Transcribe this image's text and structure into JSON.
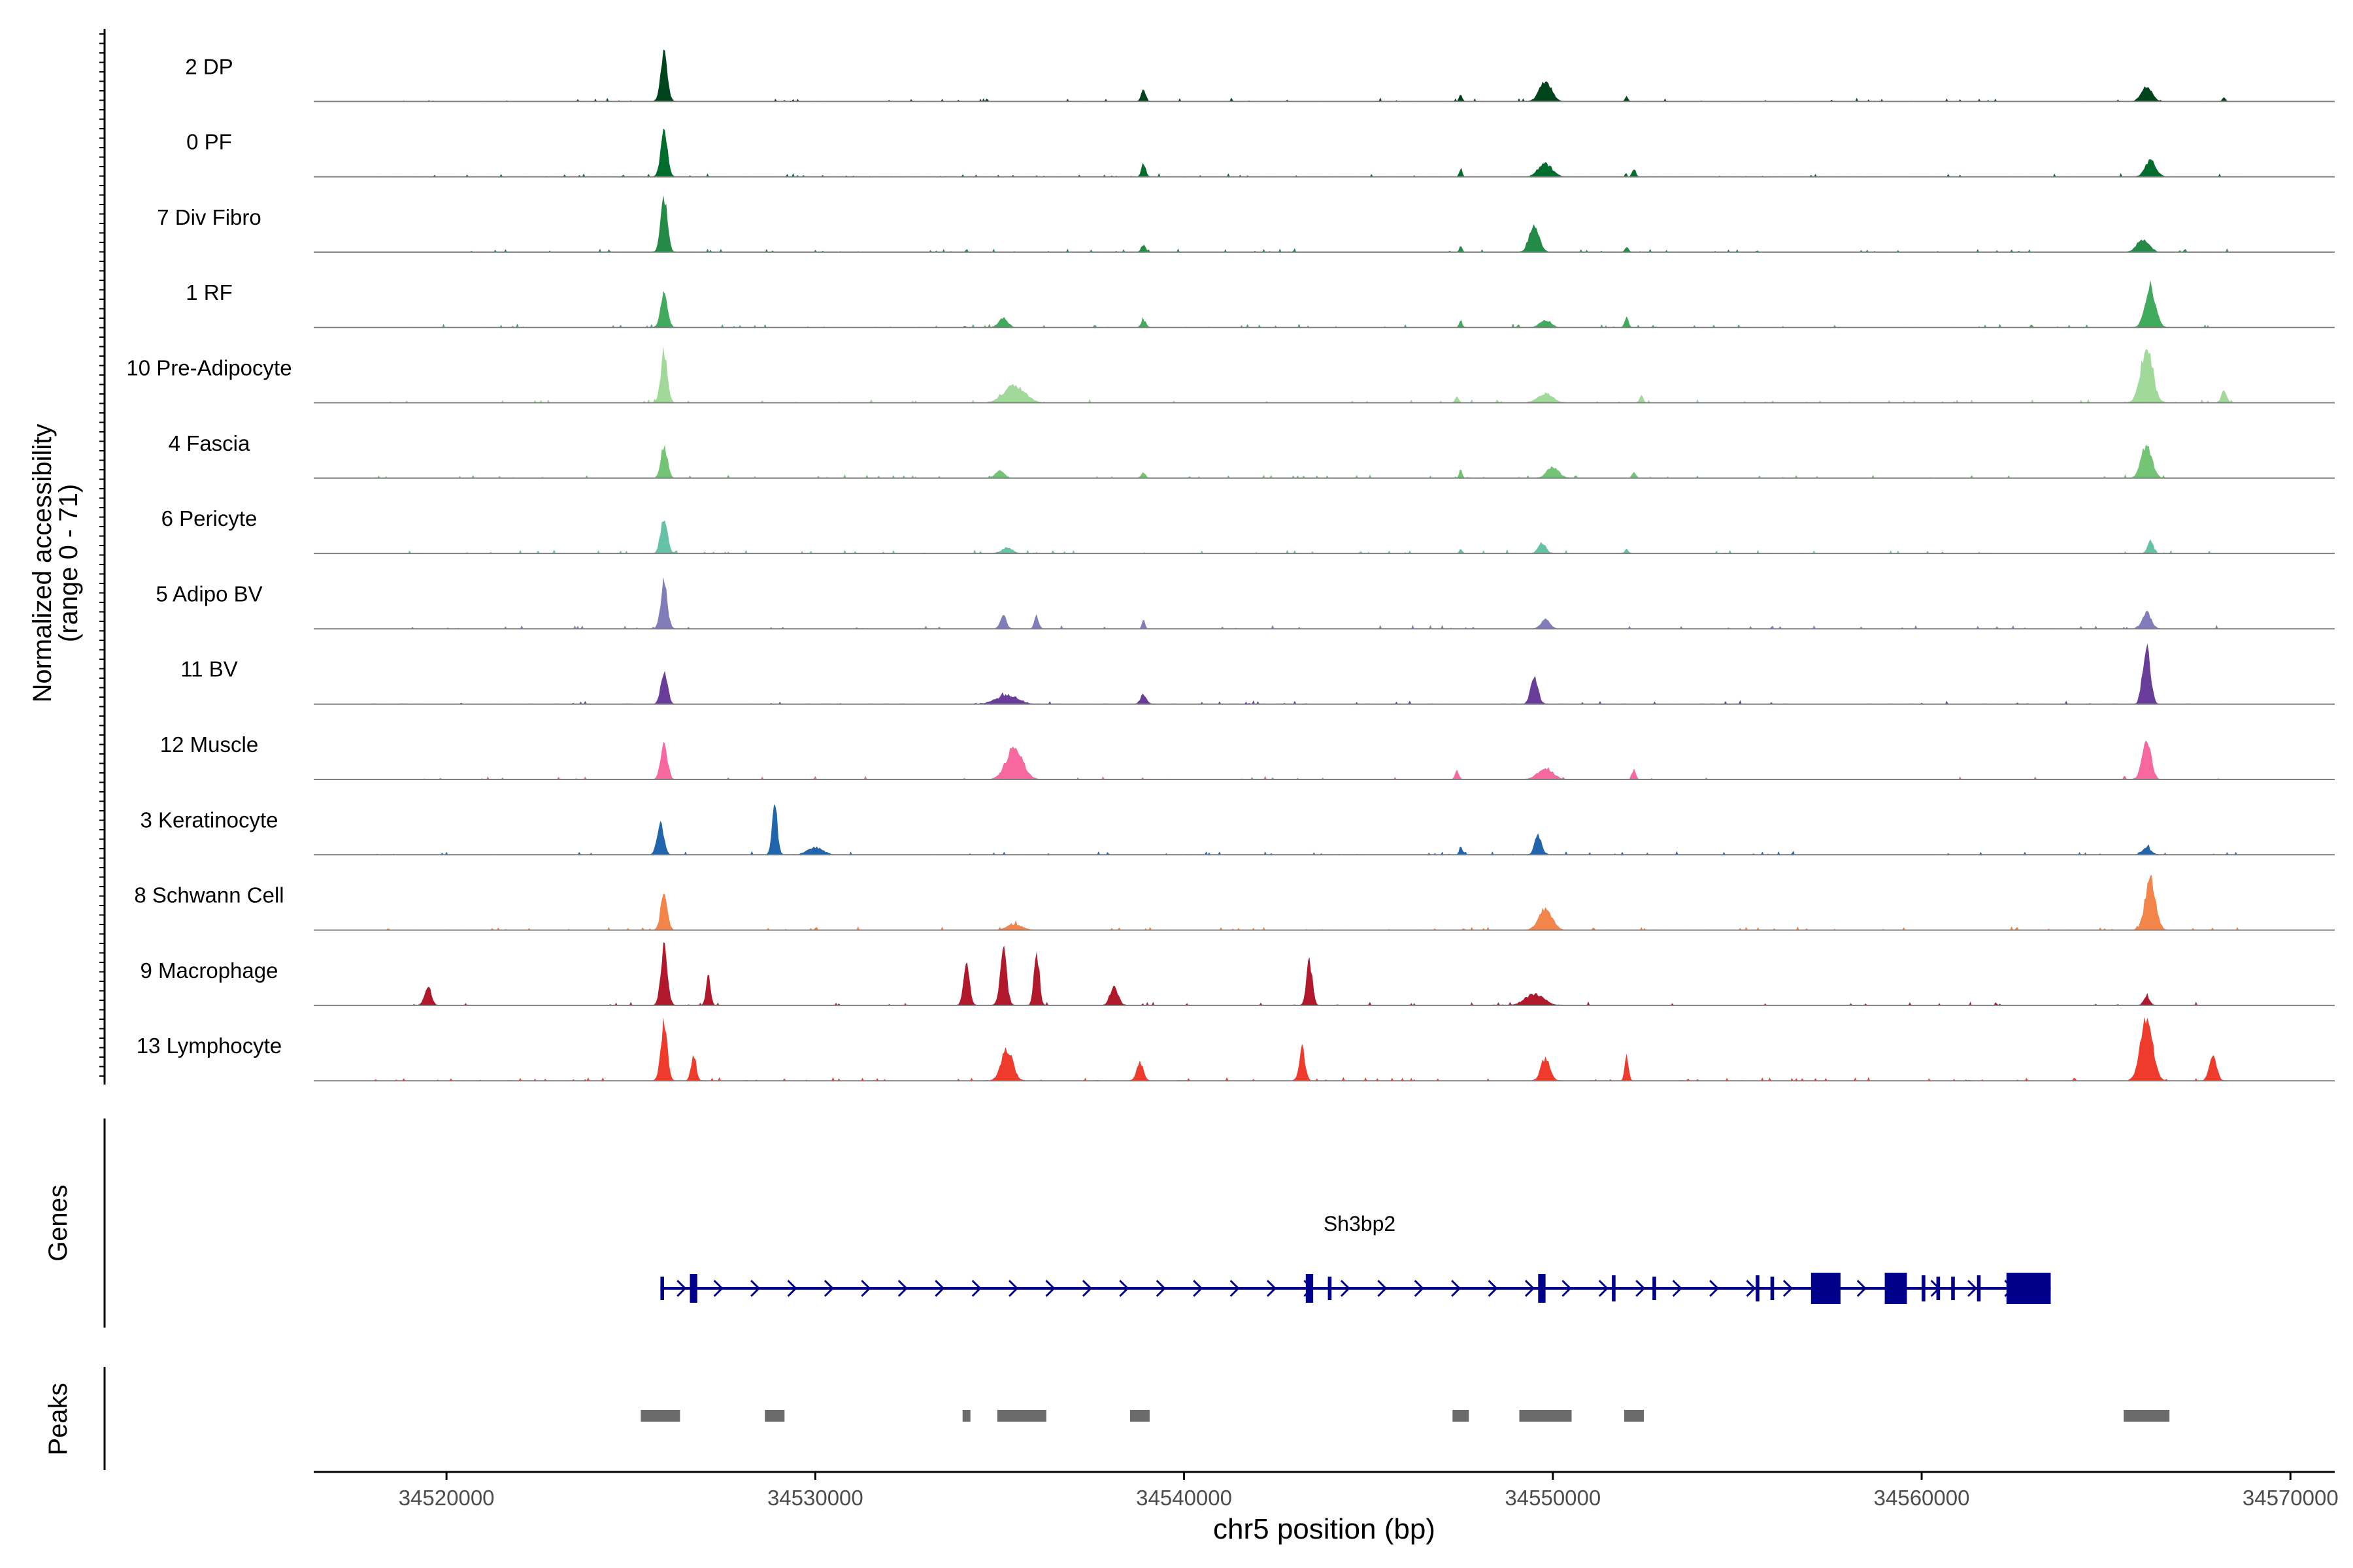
{
  "chart_data": {
    "type": "area",
    "title": "",
    "xlabel": "chr5 position (bp)",
    "ylabel": "Normalized accessibility",
    "ylabel_range": "(range 0 - 71)",
    "ylim": [
      0,
      71
    ],
    "xlim": [
      34516400,
      34571200
    ],
    "x_ticks": [
      34520000,
      34530000,
      34540000,
      34550000,
      34560000,
      34570000
    ],
    "x_tick_labels": [
      "34520000",
      "34530000",
      "34540000",
      "34550000",
      "34560000",
      "34570000"
    ],
    "track_labels": {
      "genes": "Genes",
      "peaks": "Peaks"
    },
    "peaks_x": [
      34525800,
      34528900,
      34534100,
      34535600,
      34538800,
      34547500,
      34549800,
      34552200,
      34566100
    ],
    "series": [
      {
        "name": "2 DP",
        "color": "#00441b",
        "peaks": [
          [
            34525900,
            50,
            90
          ],
          [
            34538900,
            14,
            60
          ],
          [
            34547500,
            8,
            40
          ],
          [
            34549800,
            22,
            160
          ],
          [
            34552000,
            5,
            40
          ],
          [
            34566100,
            16,
            140
          ],
          [
            34568200,
            5,
            40
          ]
        ]
      },
      {
        "name": "0 PF",
        "color": "#006d2c",
        "peaks": [
          [
            34525900,
            52,
            90
          ],
          [
            34538900,
            14,
            60
          ],
          [
            34547500,
            8,
            40
          ],
          [
            34549800,
            14,
            180
          ],
          [
            34552200,
            8,
            50
          ],
          [
            34566200,
            18,
            140
          ]
        ]
      },
      {
        "name": "7 Div Fibro",
        "color": "#238b45",
        "peaks": [
          [
            34525900,
            60,
            90
          ],
          [
            34538900,
            8,
            60
          ],
          [
            34547500,
            6,
            40
          ],
          [
            34549500,
            30,
            130
          ],
          [
            34552000,
            5,
            50
          ],
          [
            34566000,
            14,
            160
          ]
        ]
      },
      {
        "name": "1 RF",
        "color": "#41ab5d",
        "peaks": [
          [
            34525900,
            38,
            90
          ],
          [
            34535100,
            10,
            120
          ],
          [
            34538900,
            8,
            60
          ],
          [
            34547500,
            8,
            40
          ],
          [
            34549800,
            8,
            150
          ],
          [
            34552000,
            10,
            50
          ],
          [
            34566200,
            45,
            140
          ]
        ]
      },
      {
        "name": "10 Pre-Adipocyte",
        "color": "#a1d99b",
        "peaks": [
          [
            34525900,
            55,
            90
          ],
          [
            34535400,
            18,
            280
          ],
          [
            34547400,
            6,
            50
          ],
          [
            34549800,
            10,
            200
          ],
          [
            34552400,
            8,
            50
          ],
          [
            34566100,
            60,
            160
          ],
          [
            34568200,
            14,
            70
          ]
        ]
      },
      {
        "name": "4 Fascia",
        "color": "#74c476",
        "peaks": [
          [
            34525900,
            35,
            90
          ],
          [
            34535000,
            8,
            120
          ],
          [
            34538900,
            6,
            60
          ],
          [
            34547500,
            10,
            40
          ],
          [
            34550000,
            12,
            160
          ],
          [
            34552200,
            6,
            50
          ],
          [
            34566100,
            38,
            140
          ]
        ]
      },
      {
        "name": "6 Pericyte",
        "color": "#66c2a4",
        "peaks": [
          [
            34525900,
            38,
            90
          ],
          [
            34535200,
            6,
            150
          ],
          [
            34547500,
            5,
            40
          ],
          [
            34549700,
            12,
            100
          ],
          [
            34552000,
            5,
            50
          ],
          [
            34566200,
            12,
            80
          ]
        ]
      },
      {
        "name": "5 Adipo BV",
        "color": "#807dba",
        "peaks": [
          [
            34525900,
            48,
            90
          ],
          [
            34535100,
            14,
            80
          ],
          [
            34536000,
            14,
            60
          ],
          [
            34538900,
            10,
            40
          ],
          [
            34549800,
            10,
            120
          ],
          [
            34566100,
            18,
            120
          ]
        ]
      },
      {
        "name": "11 BV",
        "color": "#6a3d9a",
        "peaks": [
          [
            34525900,
            35,
            90
          ],
          [
            34535200,
            10,
            280
          ],
          [
            34538900,
            10,
            80
          ],
          [
            34549500,
            28,
            100
          ],
          [
            34566100,
            65,
            100
          ]
        ]
      },
      {
        "name": "12 Muscle",
        "color": "#f768a1",
        "peaks": [
          [
            34525900,
            38,
            90
          ],
          [
            34535400,
            35,
            220
          ],
          [
            34547400,
            10,
            50
          ],
          [
            34549800,
            12,
            200
          ],
          [
            34552200,
            10,
            50
          ],
          [
            34566100,
            42,
            120
          ]
        ]
      },
      {
        "name": "3 Keratinocyte",
        "color": "#2166ac",
        "peaks": [
          [
            34525800,
            36,
            90
          ],
          [
            34528900,
            58,
            70
          ],
          [
            34530000,
            8,
            200
          ],
          [
            34547500,
            10,
            40
          ],
          [
            34549600,
            22,
            90
          ],
          [
            34566100,
            8,
            120
          ]
        ]
      },
      {
        "name": "8 Schwann Cell",
        "color": "#f4854a",
        "peaks": [
          [
            34525900,
            38,
            90
          ],
          [
            34535400,
            6,
            200
          ],
          [
            34549800,
            22,
            180
          ],
          [
            34566200,
            55,
            140
          ]
        ]
      },
      {
        "name": "9 Macrophage",
        "color": "#b2182b",
        "peaks": [
          [
            34519500,
            22,
            90
          ],
          [
            34525900,
            62,
            90
          ],
          [
            34527100,
            35,
            60
          ],
          [
            34534100,
            50,
            80
          ],
          [
            34535100,
            58,
            90
          ],
          [
            34536000,
            60,
            70
          ],
          [
            34538100,
            20,
            110
          ],
          [
            34543400,
            48,
            80
          ],
          [
            34549500,
            12,
            250
          ],
          [
            34566100,
            10,
            80
          ]
        ]
      },
      {
        "name": "13 Lymphocyte",
        "color": "#ef3b2c",
        "peaks": [
          [
            34525900,
            60,
            90
          ],
          [
            34526700,
            28,
            70
          ],
          [
            34535200,
            35,
            150
          ],
          [
            34538800,
            20,
            90
          ],
          [
            34543200,
            35,
            80
          ],
          [
            34549800,
            25,
            120
          ],
          [
            34552000,
            30,
            50
          ],
          [
            34566100,
            70,
            160
          ],
          [
            34567900,
            25,
            100
          ]
        ]
      }
    ]
  },
  "gene_label": "Sh3bp2",
  "colors": {
    "gene": "#00008b",
    "peak": "#6b6b6b",
    "axis": "#000000",
    "baseline": "#808080"
  }
}
